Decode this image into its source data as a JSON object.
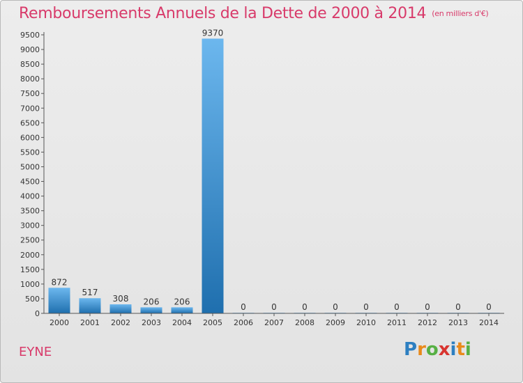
{
  "title": "Remboursements Annuels de la Dette de 2000 à 2014",
  "unit_note": "(en milliers d'€)",
  "commune": "EYNE",
  "logo": {
    "letters": [
      "P",
      "r",
      "o",
      "x",
      "i",
      "t",
      "i"
    ],
    "colors": [
      "#2d7fc1",
      "#e98a1b",
      "#57b044",
      "#d8342f",
      "#2d7fc1",
      "#e98a1b",
      "#57b044"
    ]
  },
  "colors": {
    "bar_light": "#6cb7ee",
    "bar_dark": "#1f6fae",
    "title": "#d83a6a"
  },
  "chart_data": {
    "type": "bar",
    "title": "Remboursements Annuels de la Dette de 2000 à 2014",
    "xlabel": "",
    "ylabel": "",
    "categories": [
      "2000",
      "2001",
      "2002",
      "2003",
      "2004",
      "2005",
      "2006",
      "2007",
      "2008",
      "2009",
      "2010",
      "2011",
      "2012",
      "2013",
      "2014"
    ],
    "values": [
      872,
      517,
      308,
      206,
      206,
      9370,
      0,
      0,
      0,
      0,
      0,
      0,
      0,
      0,
      0
    ],
    "value_labels": [
      "872",
      "517",
      "308",
      "206",
      "206",
      "9370",
      "0",
      "0",
      "0",
      "0",
      "0",
      "0",
      "0",
      "0",
      "0"
    ],
    "ylim": [
      0,
      9500
    ],
    "yticks": [
      0,
      500,
      1000,
      1500,
      2000,
      2500,
      3000,
      3500,
      4000,
      4500,
      5000,
      5500,
      6000,
      6500,
      7000,
      7500,
      8000,
      8500,
      9000,
      9500
    ],
    "grid": false,
    "legend": "none"
  }
}
